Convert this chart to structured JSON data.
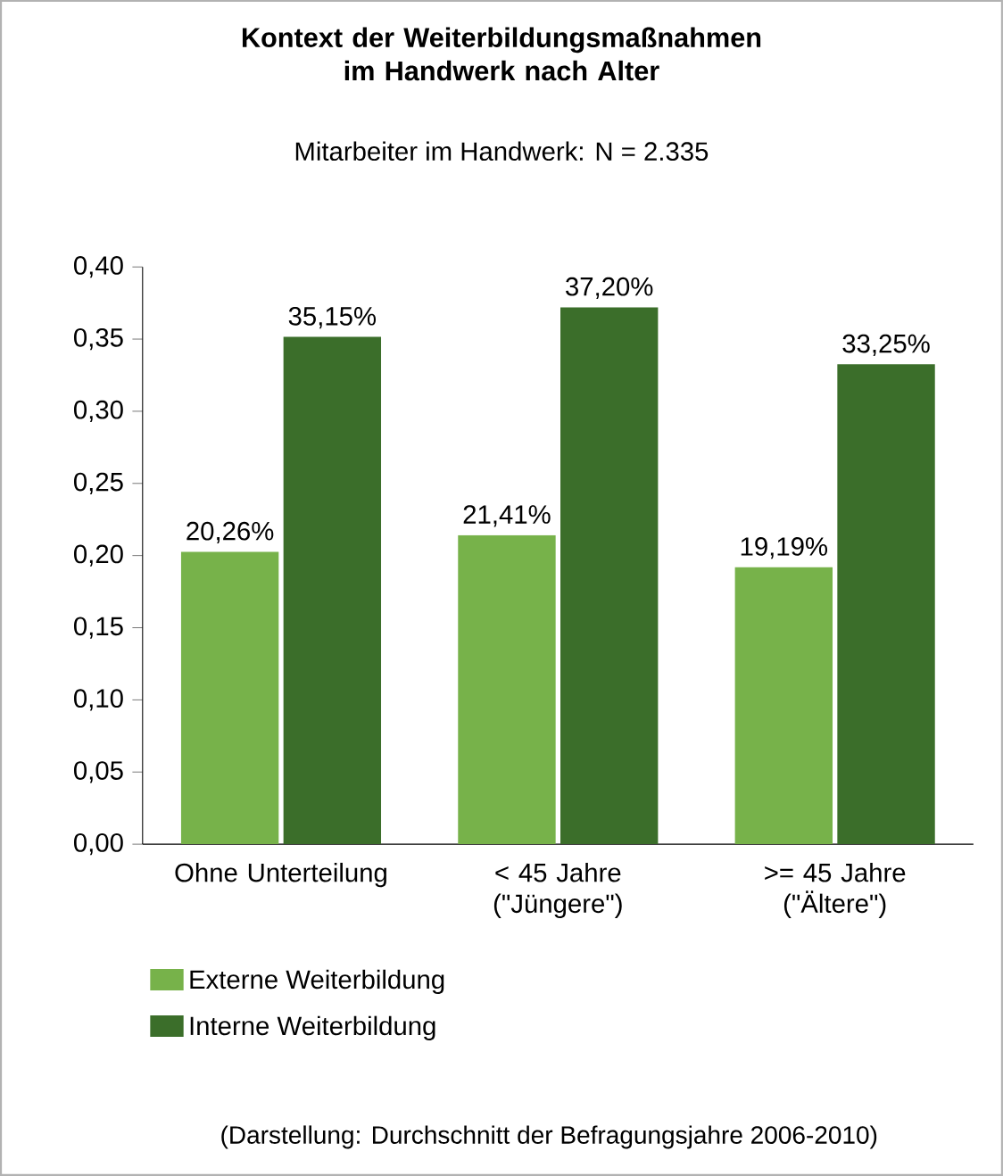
{
  "chart_data": {
    "type": "bar",
    "title": "Kontext der Weiterbildungsmaßnahmen im Handwerk nach Alter",
    "subtitle": "Mitarbeiter im Handwerk: N = 2.335",
    "categories": [
      "Ohne Unterteilung",
      "< 45 Jahre (\"Jüngere\")",
      ">= 45 Jahre (\"Ältere\")"
    ],
    "series": [
      {
        "name": "Externe Weiterbildung",
        "color": "#77b24a",
        "values": [
          0.2026,
          0.2141,
          0.1919
        ],
        "value_labels": [
          "20,26%",
          "21,41%",
          "19,19%"
        ]
      },
      {
        "name": "Interne Weiterbildung",
        "color": "#3b6e2a",
        "values": [
          0.3515,
          0.372,
          0.3325
        ],
        "value_labels": [
          "35,15%",
          "37,20%",
          "33,25%"
        ]
      }
    ],
    "ylim": [
      0,
      0.4
    ],
    "yticks": [
      {
        "value": 0,
        "label": "0,00"
      },
      {
        "value": 0.05,
        "label": "0,05"
      },
      {
        "value": 0.1,
        "label": "0,10"
      },
      {
        "value": 0.15,
        "label": "0,15"
      },
      {
        "value": 0.2,
        "label": "0,20"
      },
      {
        "value": 0.25,
        "label": "0,25"
      },
      {
        "value": 0.3,
        "label": "0,30"
      },
      {
        "value": 0.35,
        "label": "0,35"
      },
      {
        "value": 0.4,
        "label": "0,40"
      }
    ],
    "legend": "bottom left",
    "grid": false,
    "annotations": [
      "(Darstellung: Durchschnitt der Befragungsjahre 2006-2010)"
    ]
  }
}
